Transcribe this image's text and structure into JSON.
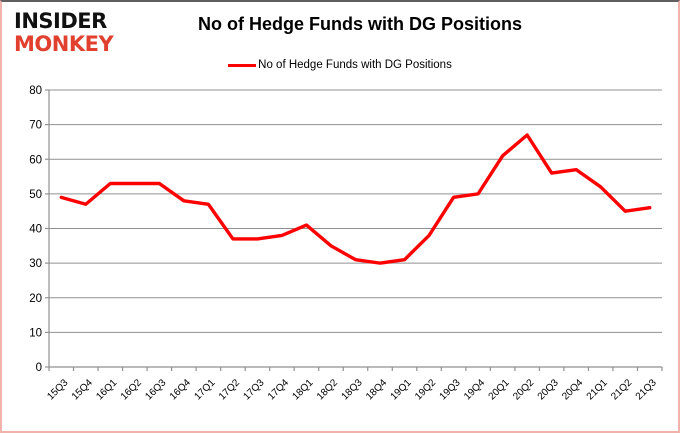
{
  "logo": {
    "line1": "INSIDER",
    "line2": "MONKEY"
  },
  "header": {
    "title": "No of Hedge Funds with DG Positions"
  },
  "legend": {
    "label": "No of Hedge Funds with DG Positions"
  },
  "colors": {
    "series": "#ff0000",
    "grid": "#919191",
    "text": "#000000",
    "logo_primary": "#111111",
    "logo_accent": "#e2402e",
    "border": "#f0b2ab"
  },
  "chart_data": {
    "type": "line",
    "title": "No of Hedge Funds with DG Positions",
    "xlabel": "",
    "ylabel": "",
    "ylim": [
      0,
      80
    ],
    "ytick_step": 10,
    "grid": "horizontal",
    "legend_position": "top-center",
    "categories": [
      "15Q3",
      "15Q4",
      "16Q1",
      "16Q2",
      "16Q3",
      "16Q4",
      "17Q1",
      "17Q2",
      "17Q3",
      "17Q4",
      "18Q1",
      "18Q2",
      "18Q3",
      "18Q4",
      "19Q1",
      "19Q2",
      "19Q3",
      "19Q4",
      "20Q1",
      "20Q2",
      "20Q3",
      "20Q4",
      "21Q1",
      "21Q2",
      "21Q3"
    ],
    "series": [
      {
        "name": "No of Hedge Funds with DG Positions",
        "values": [
          49,
          47,
          53,
          53,
          53,
          48,
          47,
          37,
          37,
          38,
          41,
          35,
          31,
          30,
          31,
          38,
          49,
          50,
          61,
          67,
          56,
          57,
          52,
          45,
          46
        ]
      }
    ]
  }
}
